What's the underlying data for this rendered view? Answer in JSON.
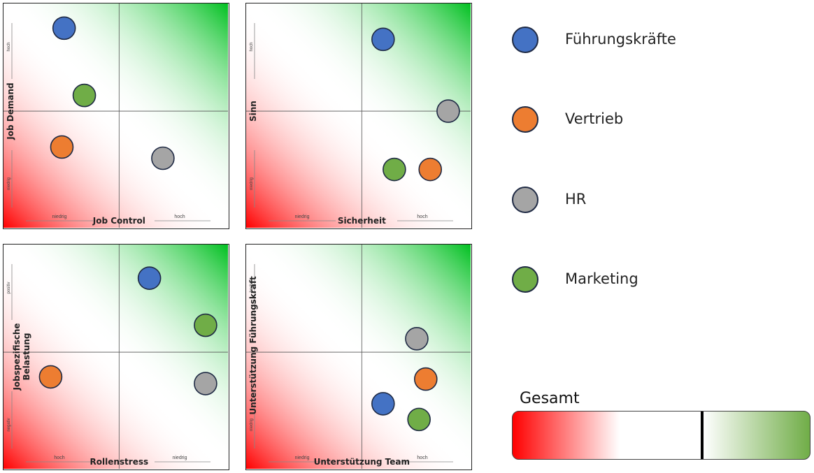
{
  "chart_data": [
    {
      "type": "scatter",
      "xlabel": "Job Control",
      "ylabel": "Job Demand",
      "x_low_label": "niedrig",
      "x_high_label": "hoch",
      "y_low_label": "niedrig",
      "y_high_label": "hoch",
      "xlim": [
        0,
        1
      ],
      "ylim": [
        0,
        1
      ],
      "points": [
        {
          "series": "Führungskräfte",
          "x": 0.27,
          "y": 0.89
        },
        {
          "series": "Marketing",
          "x": 0.36,
          "y": 0.59
        },
        {
          "series": "Vertrieb",
          "x": 0.26,
          "y": 0.36
        },
        {
          "series": "HR",
          "x": 0.71,
          "y": 0.31
        }
      ]
    },
    {
      "type": "scatter",
      "xlabel": "Sicherheit",
      "ylabel": "Sinn",
      "x_low_label": "niedrig",
      "x_high_label": "hoch",
      "y_low_label": "niedrig",
      "y_high_label": "hoch",
      "xlim": [
        0,
        1
      ],
      "ylim": [
        0,
        1
      ],
      "points": [
        {
          "series": "Führungskräfte",
          "x": 0.61,
          "y": 0.84
        },
        {
          "series": "HR",
          "x": 0.9,
          "y": 0.52
        },
        {
          "series": "Marketing",
          "x": 0.66,
          "y": 0.26
        },
        {
          "series": "Vertrieb",
          "x": 0.82,
          "y": 0.26
        }
      ]
    },
    {
      "type": "scatter",
      "xlabel": "Rollenstress",
      "ylabel": "Jobspezifische Belastung",
      "x_low_label": "hoch",
      "x_high_label": "niedrig",
      "y_low_label": "negativ",
      "y_high_label": "positiv",
      "xlim": [
        0,
        1
      ],
      "ylim": [
        0,
        1
      ],
      "points": [
        {
          "series": "Führungskräfte",
          "x": 0.65,
          "y": 0.85
        },
        {
          "series": "Marketing",
          "x": 0.9,
          "y": 0.64
        },
        {
          "series": "Vertrieb",
          "x": 0.21,
          "y": 0.41
        },
        {
          "series": "HR",
          "x": 0.9,
          "y": 0.38
        }
      ]
    },
    {
      "type": "scatter",
      "xlabel": "Unterstützung Team",
      "ylabel": "Unterstützung Führungskraft",
      "x_low_label": "niedrig",
      "x_high_label": "hoch",
      "y_low_label": "niedrig",
      "y_high_label": "hoch",
      "xlim": [
        0,
        1
      ],
      "ylim": [
        0,
        1
      ],
      "points": [
        {
          "series": "HR",
          "x": 0.76,
          "y": 0.58
        },
        {
          "series": "Vertrieb",
          "x": 0.8,
          "y": 0.4
        },
        {
          "series": "Führungskräfte",
          "x": 0.61,
          "y": 0.29
        },
        {
          "series": "Marketing",
          "x": 0.77,
          "y": 0.22
        }
      ]
    }
  ],
  "legend": {
    "items": [
      {
        "name": "Führungskräfte",
        "color": "#4472c4"
      },
      {
        "name": "Vertrieb",
        "color": "#ed7d31"
      },
      {
        "name": "HR",
        "color": "#a5a5a5"
      },
      {
        "name": "Marketing",
        "color": "#70ad47"
      }
    ]
  },
  "gesamt": {
    "title": "Gesamt",
    "marker_value": 0.64,
    "low_color": "#ff0000",
    "high_color": "#70ad47"
  }
}
